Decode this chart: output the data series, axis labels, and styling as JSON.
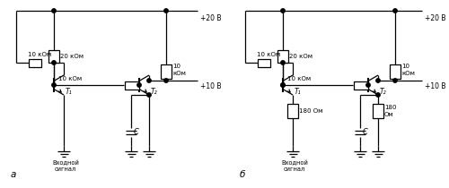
{
  "bg_color": "#ffffff",
  "line_color": "#000000",
  "lw": 0.9,
  "fig_width": 5.0,
  "fig_height": 2.1,
  "dpi": 100,
  "label_a": "а",
  "label_b": "б",
  "text_20kom": "20 кОм",
  "text_10kom": "10 кОм",
  "text_10kom_mid": "10 кОм",
  "text_10k_rc": "10\nкОм",
  "text_180_1": "180 Ом",
  "text_180_2": "180\nОм",
  "text_vcc": "+20 В",
  "text_v10": "+10 В",
  "text_C": "C",
  "text_T1": "T₁",
  "text_T2": "T₂",
  "text_input": "Входной\nсигнал"
}
